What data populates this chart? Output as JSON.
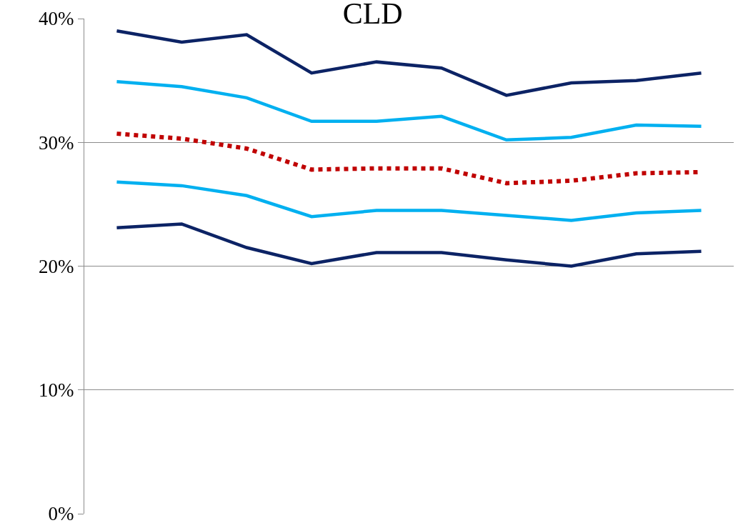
{
  "chart_data": {
    "type": "line",
    "title": "CLD",
    "categories": [
      null,
      null,
      null,
      null,
      null,
      null,
      null,
      null,
      null,
      null
    ],
    "series": [
      {
        "color": "#0c2365",
        "line_style": "solid",
        "values": [
          39.0,
          38.1,
          38.7,
          35.6,
          36.5,
          36.0,
          33.8,
          34.8,
          35.0,
          35.6
        ]
      },
      {
        "color": "#00b0f0",
        "line_style": "solid",
        "values": [
          34.9,
          34.5,
          33.6,
          31.7,
          31.7,
          32.1,
          30.2,
          30.4,
          31.4,
          31.3
        ]
      },
      {
        "color": "#c00000",
        "line_style": "dotted",
        "values": [
          30.7,
          30.3,
          29.5,
          27.8,
          27.9,
          27.9,
          26.7,
          26.9,
          27.5,
          27.6
        ]
      },
      {
        "color": "#00b0f0",
        "line_style": "solid",
        "values": [
          26.8,
          26.5,
          25.7,
          24.0,
          24.5,
          24.5,
          24.1,
          23.7,
          24.3,
          24.5
        ]
      },
      {
        "color": "#0c2365",
        "line_style": "solid",
        "values": [
          23.1,
          23.4,
          21.5,
          20.2,
          21.1,
          21.1,
          20.5,
          20.0,
          21.0,
          21.2
        ]
      }
    ],
    "ylim": [
      0,
      40
    ],
    "yticks": [
      {
        "value": 0,
        "label": "0%"
      },
      {
        "value": 10,
        "label": "10%"
      },
      {
        "value": 20,
        "label": "20%"
      },
      {
        "value": 30,
        "label": "30%"
      },
      {
        "value": 40,
        "label": "40%"
      }
    ],
    "grid": "y",
    "tick_labels": "y"
  }
}
